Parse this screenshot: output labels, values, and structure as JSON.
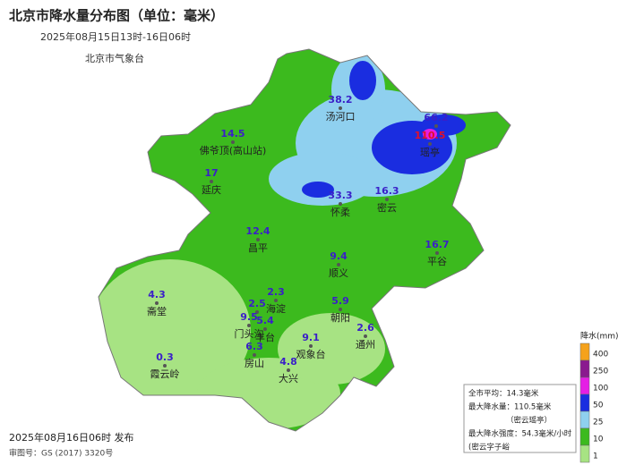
{
  "header": {
    "title": "北京市降水量分布图（单位：毫米）",
    "subtitle": "2025年08月15日13时-16日06时",
    "agency": "北京市气象台"
  },
  "stations": [
    {
      "value": "38.2",
      "name": "汤河口"
    },
    {
      "value": "14.5",
      "name": "佛爷顶(高山站)"
    },
    {
      "value": "66.2",
      "name": null
    },
    {
      "value": "110.5",
      "name": "瑶亭"
    },
    {
      "value": "17",
      "name": "延庆"
    },
    {
      "value": "33.3",
      "name": "怀柔"
    },
    {
      "value": "16.3",
      "name": "密云"
    },
    {
      "value": "12.4",
      "name": "昌平"
    },
    {
      "value": "9.4",
      "name": "顺义"
    },
    {
      "value": "16.7",
      "name": "平谷"
    },
    {
      "value": "4.3",
      "name": "斋堂"
    },
    {
      "value": "2.3",
      "name": "海淀"
    },
    {
      "value": "5.9",
      "name": "朝阳"
    },
    {
      "value": "2.5",
      "name": null
    },
    {
      "value": "9.5",
      "name": "门头沟"
    },
    {
      "value": "5.4",
      "name": "丰台"
    },
    {
      "value": "2.6",
      "name": "通州"
    },
    {
      "value": "6.3",
      "name": "房山"
    },
    {
      "value": "9.1",
      "name": "观象台"
    },
    {
      "value": "4.8",
      "name": "大兴"
    },
    {
      "value": "0.3",
      "name": "霞云岭"
    }
  ],
  "legend": {
    "title": "降水(mm)",
    "levels": [
      {
        "label": "400",
        "color": "#f5a21b"
      },
      {
        "label": "250",
        "color": "#8a1a8f"
      },
      {
        "label": "100",
        "color": "#e51ee5"
      },
      {
        "label": "50",
        "color": "#1a2de0"
      },
      {
        "label": "25",
        "color": "#8fd0ef"
      },
      {
        "label": "10",
        "color": "#3cba1e"
      },
      {
        "label": "1",
        "color": "#a7e383"
      }
    ]
  },
  "info": [
    "全市平均：14.3毫米",
    "最大降水量：110.5毫米",
    "（密云瑶亭）",
    "最大降水强度：54.3毫米/小时",
    "(密云字子峪"
  ],
  "footer": {
    "issued": "2025年08月16日06时 发布",
    "approval": "审图号：GS (2017) 3320号"
  }
}
